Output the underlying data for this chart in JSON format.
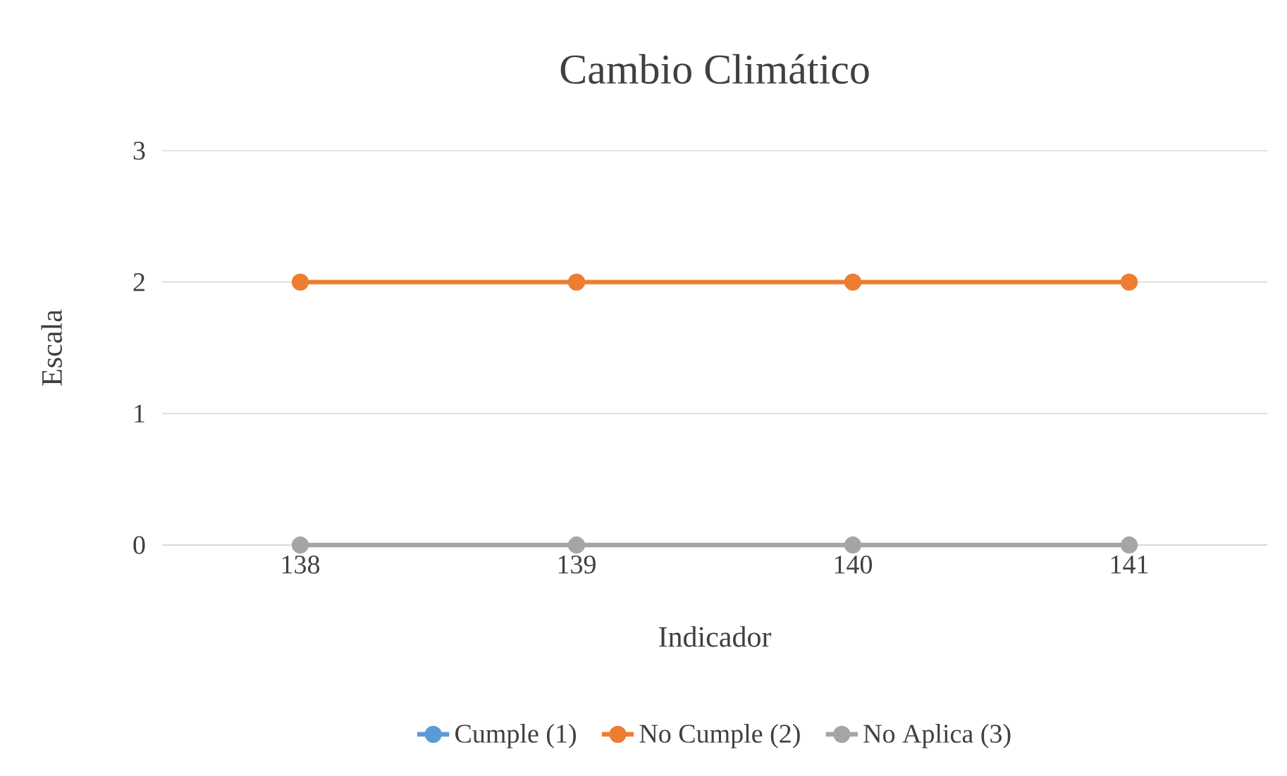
{
  "chart_data": {
    "type": "line",
    "title": "Cambio Climático",
    "xlabel": "Indicador",
    "ylabel": "Escala",
    "categories": [
      "138",
      "139",
      "140",
      "141"
    ],
    "series": [
      {
        "name": "Cumple (1)",
        "color": "#5b9bd5",
        "values": [
          null,
          null,
          null,
          null
        ]
      },
      {
        "name": "No Cumple (2)",
        "color": "#ed7d31",
        "values": [
          2,
          2,
          2,
          2
        ]
      },
      {
        "name": "No Aplica (3)",
        "color": "#a5a5a5",
        "values": [
          0,
          0,
          0,
          0
        ]
      }
    ],
    "ylim": [
      0,
      3
    ],
    "yticks": [
      0,
      1,
      2,
      3
    ],
    "grid": "y",
    "legend": "bottom",
    "marker": "circle",
    "line_style": "solid"
  }
}
